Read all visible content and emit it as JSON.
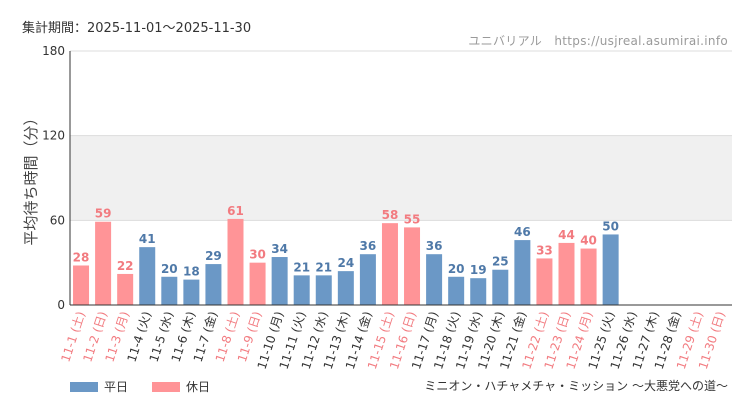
{
  "period_label": "集計期間：2025-11-01～2025-11-30",
  "watermark": "ユニバリアル　https://usjreal.asumirai.info",
  "footer_title": "ミニオン・ハチャメチャ・ミッション ～大悪党への道～",
  "colors": {
    "weekday": "#6b98c6",
    "holiday": "#ff9497",
    "weekday_label": "#4f79a8",
    "holiday_label": "#f27b80",
    "band": "#f0f0f0",
    "grid": "#dcdcdc"
  },
  "chart_data": {
    "type": "bar",
    "title": "",
    "ylabel": "平均待ち時間（分）",
    "xlabel": "",
    "ylim": [
      0,
      180
    ],
    "yticks": [
      0,
      60,
      120,
      180
    ],
    "grid": true,
    "legend_position": "bottom-left",
    "legend": [
      {
        "key": "weekday",
        "label": "平日"
      },
      {
        "key": "holiday",
        "label": "休日"
      }
    ],
    "categories": [
      "11-1 (土)",
      "11-2 (日)",
      "11-3 (月)",
      "11-4 (火)",
      "11-5 (水)",
      "11-6 (木)",
      "11-7 (金)",
      "11-8 (土)",
      "11-9 (日)",
      "11-10 (月)",
      "11-11 (火)",
      "11-12 (水)",
      "11-13 (木)",
      "11-14 (金)",
      "11-15 (土)",
      "11-16 (日)",
      "11-17 (月)",
      "11-18 (火)",
      "11-19 (水)",
      "11-20 (木)",
      "11-21 (金)",
      "11-22 (土)",
      "11-23 (日)",
      "11-24 (月)",
      "11-25 (火)",
      "11-26 (水)",
      "11-27 (木)",
      "11-28 (金)",
      "11-29 (土)",
      "11-30 (日)"
    ],
    "values": [
      28,
      59,
      22,
      41,
      20,
      18,
      29,
      61,
      30,
      34,
      21,
      21,
      24,
      36,
      58,
      55,
      36,
      20,
      19,
      25,
      46,
      33,
      44,
      40,
      50,
      null,
      null,
      null,
      null,
      null
    ],
    "day_type": [
      "holiday",
      "holiday",
      "holiday",
      "weekday",
      "weekday",
      "weekday",
      "weekday",
      "holiday",
      "holiday",
      "weekday",
      "weekday",
      "weekday",
      "weekday",
      "weekday",
      "holiday",
      "holiday",
      "weekday",
      "weekday",
      "weekday",
      "weekday",
      "weekday",
      "holiday",
      "holiday",
      "holiday",
      "weekday",
      "weekday",
      "weekday",
      "weekday",
      "holiday",
      "holiday"
    ]
  }
}
